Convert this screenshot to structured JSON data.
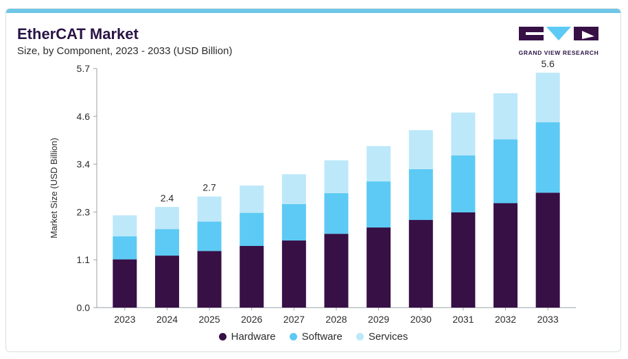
{
  "header": {
    "title": "EtherCAT Market",
    "subtitle": "Size, by Component, 2023 - 2033 (USD Billion)"
  },
  "logo": {
    "text": "GRAND VIEW RESEARCH"
  },
  "colors": {
    "hardware": "#371046",
    "software": "#5ccaf4",
    "services": "#bde8fa",
    "accent_bar": "#6fc6e6"
  },
  "chart_data": {
    "type": "bar",
    "stacked": true,
    "categories": [
      "2023",
      "2024",
      "2025",
      "2026",
      "2027",
      "2028",
      "2029",
      "2030",
      "2031",
      "2032",
      "2033"
    ],
    "series": [
      {
        "name": "Hardware",
        "values": [
          1.15,
          1.24,
          1.35,
          1.47,
          1.6,
          1.76,
          1.91,
          2.09,
          2.27,
          2.49,
          2.74
        ]
      },
      {
        "name": "Software",
        "values": [
          0.55,
          0.63,
          0.7,
          0.79,
          0.87,
          0.97,
          1.1,
          1.21,
          1.36,
          1.52,
          1.68
        ]
      },
      {
        "name": "Services",
        "values": [
          0.5,
          0.53,
          0.6,
          0.65,
          0.71,
          0.78,
          0.84,
          0.93,
          1.02,
          1.1,
          1.18
        ]
      }
    ],
    "data_labels": {
      "2024": "2.4",
      "2025": "2.7",
      "2033": "5.6"
    },
    "ylabel": "Market Size (USD Billion)",
    "xlabel": "",
    "yticks": [
      "0.0",
      "1.1",
      "2.3",
      "3.4",
      "4.6",
      "5.7"
    ],
    "ylim": [
      0,
      5.7
    ],
    "grid": false,
    "legend_position": "bottom"
  }
}
